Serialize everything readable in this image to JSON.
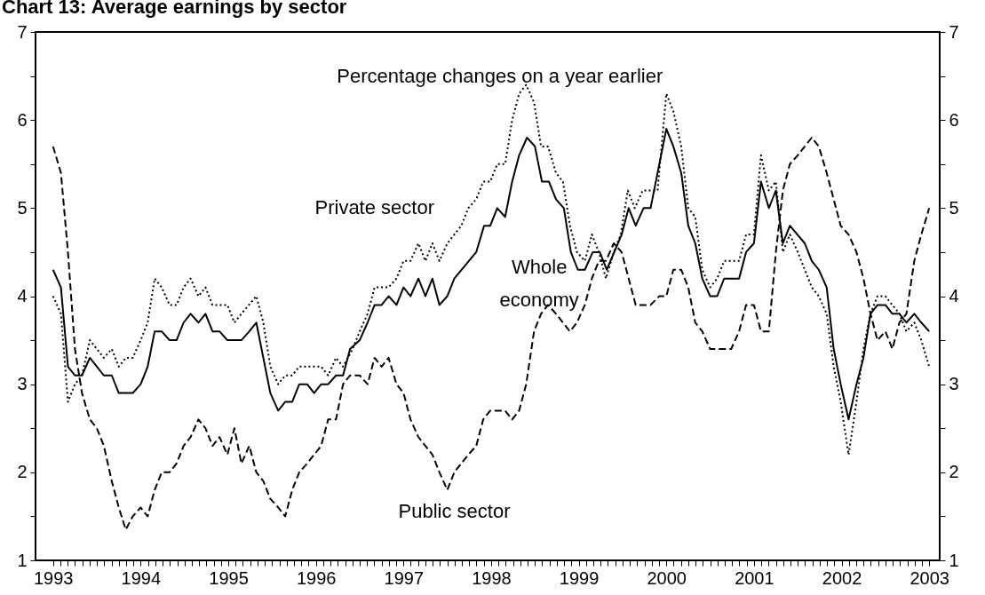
{
  "chart_data": {
    "type": "line",
    "title": "Chart 13: Average earnings by sector",
    "subtitle": "Percentage changes on a year earlier",
    "xlim": [
      1992.8,
      2003.12
    ],
    "ylim": [
      1,
      7
    ],
    "y2lim": [
      1,
      7
    ],
    "xticks": [
      1993,
      {
        "value": 1993.083,
        "label": null
      },
      {
        "value": 1993.167,
        "label": null
      },
      {
        "value": 1993.25,
        "label": null
      },
      {
        "value": 1993.333,
        "label": null
      },
      {
        "value": 1993.417,
        "label": null
      },
      {
        "value": 1993.5,
        "label": null
      },
      {
        "value": 1993.583,
        "label": null
      },
      {
        "value": 1993.667,
        "label": null
      },
      {
        "value": 1993.75,
        "label": null
      },
      {
        "value": 1993.833,
        "label": null
      },
      {
        "value": 1993.917,
        "label": null
      },
      1994,
      {
        "value": 1994.083,
        "label": null
      },
      {
        "value": 1994.167,
        "label": null
      },
      {
        "value": 1994.25,
        "label": null
      },
      {
        "value": 1994.333,
        "label": null
      },
      {
        "value": 1994.417,
        "label": null
      },
      {
        "value": 1994.5,
        "label": null
      },
      {
        "value": 1994.583,
        "label": null
      },
      {
        "value": 1994.667,
        "label": null
      },
      {
        "value": 1994.75,
        "label": null
      },
      {
        "value": 1994.833,
        "label": null
      },
      {
        "value": 1994.917,
        "label": null
      },
      1995,
      {
        "value": 1995.083,
        "label": null
      },
      {
        "value": 1995.167,
        "label": null
      },
      {
        "value": 1995.25,
        "label": null
      },
      {
        "value": 1995.333,
        "label": null
      },
      {
        "value": 1995.417,
        "label": null
      },
      {
        "value": 1995.5,
        "label": null
      },
      {
        "value": 1995.583,
        "label": null
      },
      {
        "value": 1995.667,
        "label": null
      },
      {
        "value": 1995.75,
        "label": null
      },
      {
        "value": 1995.833,
        "label": null
      },
      {
        "value": 1995.917,
        "label": null
      },
      1996,
      {
        "value": 1996.083,
        "label": null
      },
      {
        "value": 1996.167,
        "label": null
      },
      {
        "value": 1996.25,
        "label": null
      },
      {
        "value": 1996.333,
        "label": null
      },
      {
        "value": 1996.417,
        "label": null
      },
      {
        "value": 1996.5,
        "label": null
      },
      {
        "value": 1996.583,
        "label": null
      },
      {
        "value": 1996.667,
        "label": null
      },
      {
        "value": 1996.75,
        "label": null
      },
      {
        "value": 1996.833,
        "label": null
      },
      {
        "value": 1996.917,
        "label": null
      },
      1997,
      {
        "value": 1997.083,
        "label": null
      },
      {
        "value": 1997.167,
        "label": null
      },
      {
        "value": 1997.25,
        "label": null
      },
      {
        "value": 1997.333,
        "label": null
      },
      {
        "value": 1997.417,
        "label": null
      },
      {
        "value": 1997.5,
        "label": null
      },
      {
        "value": 1997.583,
        "label": null
      },
      {
        "value": 1997.667,
        "label": null
      },
      {
        "value": 1997.75,
        "label": null
      },
      {
        "value": 1997.833,
        "label": null
      },
      {
        "value": 1997.917,
        "label": null
      },
      1998,
      {
        "value": 1998.083,
        "label": null
      },
      {
        "value": 1998.167,
        "label": null
      },
      {
        "value": 1998.25,
        "label": null
      },
      {
        "value": 1998.333,
        "label": null
      },
      {
        "value": 1998.417,
        "label": null
      },
      {
        "value": 1998.5,
        "label": null
      },
      {
        "value": 1998.583,
        "label": null
      },
      {
        "value": 1998.667,
        "label": null
      },
      {
        "value": 1998.75,
        "label": null
      },
      {
        "value": 1998.833,
        "label": null
      },
      {
        "value": 1998.917,
        "label": null
      },
      1999,
      {
        "value": 1999.083,
        "label": null
      },
      {
        "value": 1999.167,
        "label": null
      },
      {
        "value": 1999.25,
        "label": null
      },
      {
        "value": 1999.333,
        "label": null
      },
      {
        "value": 1999.417,
        "label": null
      },
      {
        "value": 1999.5,
        "label": null
      },
      {
        "value": 1999.583,
        "label": null
      },
      {
        "value": 1999.667,
        "label": null
      },
      {
        "value": 1999.75,
        "label": null
      },
      {
        "value": 1999.833,
        "label": null
      },
      {
        "value": 1999.917,
        "label": null
      },
      2000,
      {
        "value": 2000.083,
        "label": null
      },
      {
        "value": 2000.167,
        "label": null
      },
      {
        "value": 2000.25,
        "label": null
      },
      {
        "value": 2000.333,
        "label": null
      },
      {
        "value": 2000.417,
        "label": null
      },
      {
        "value": 2000.5,
        "label": null
      },
      {
        "value": 2000.583,
        "label": null
      },
      {
        "value": 2000.667,
        "label": null
      },
      {
        "value": 2000.75,
        "label": null
      },
      {
        "value": 2000.833,
        "label": null
      },
      {
        "value": 2000.917,
        "label": null
      },
      2001,
      {
        "value": 2001.083,
        "label": null
      },
      {
        "value": 2001.167,
        "label": null
      },
      {
        "value": 2001.25,
        "label": null
      },
      {
        "value": 2001.333,
        "label": null
      },
      {
        "value": 2001.417,
        "label": null
      },
      {
        "value": 2001.5,
        "label": null
      },
      {
        "value": 2001.583,
        "label": null
      },
      {
        "value": 2001.667,
        "label": null
      },
      {
        "value": 2001.75,
        "label": null
      },
      {
        "value": 2001.833,
        "label": null
      },
      {
        "value": 2001.917,
        "label": null
      },
      2002,
      {
        "value": 2002.083,
        "label": null
      },
      {
        "value": 2002.167,
        "label": null
      },
      {
        "value": 2002.25,
        "label": null
      },
      {
        "value": 2002.333,
        "label": null
      },
      {
        "value": 2002.417,
        "label": null
      },
      {
        "value": 2002.5,
        "label": null
      },
      {
        "value": 2002.583,
        "label": null
      },
      {
        "value": 2002.667,
        "label": null
      },
      {
        "value": 2002.75,
        "label": null
      },
      {
        "value": 2002.833,
        "label": null
      },
      {
        "value": 2002.917,
        "label": null
      },
      2003
    ],
    "yticks": [
      1,
      {
        "value": 1.5,
        "label": null
      },
      2,
      {
        "value": 2.5,
        "label": null
      },
      3,
      {
        "value": 3.5,
        "label": null
      },
      4,
      {
        "value": 4.5,
        "label": null
      },
      5,
      {
        "value": 5.5,
        "label": null
      },
      6,
      {
        "value": 6.5,
        "label": null
      },
      7
    ],
    "y2ticks": [
      1,
      {
        "value": 1.5,
        "label": null
      },
      2,
      {
        "value": 2.5,
        "label": null
      },
      3,
      {
        "value": 3.5,
        "label": null
      },
      4,
      {
        "value": 4.5,
        "label": null
      },
      5,
      {
        "value": 5.5,
        "label": null
      },
      6,
      {
        "value": 6.5,
        "label": null
      },
      7
    ],
    "series": [
      {
        "name": "Whole economy",
        "color": "#000000",
        "line_style": "solid",
        "x": [
          1993.0,
          1993.09,
          1993.17,
          1993.25,
          1993.33,
          1993.42,
          1993.5,
          1993.58,
          1993.67,
          1993.75,
          1993.91,
          1994.0,
          1994.08,
          1994.16,
          1994.24,
          1994.33,
          1994.41,
          1994.49,
          1994.57,
          1994.66,
          1994.74,
          1994.82,
          1994.9,
          1994.99,
          1995.15,
          1995.24,
          1995.32,
          1995.48,
          1995.57,
          1995.65,
          1995.73,
          1995.81,
          1995.9,
          1995.98,
          1996.06,
          1996.14,
          1996.23,
          1996.31,
          1996.39,
          1996.5,
          1996.59,
          1996.67,
          1996.75,
          1996.83,
          1996.92,
          1997.0,
          1997.08,
          1997.17,
          1997.25,
          1997.33,
          1997.41,
          1997.5,
          1997.58,
          1997.83,
          1997.92,
          1997.99,
          1998.07,
          1998.16,
          1998.24,
          1998.32,
          1998.41,
          1998.5,
          1998.58,
          1998.66,
          1998.74,
          1998.83,
          1998.91,
          1998.99,
          1999.07,
          1999.16,
          1999.24,
          1999.32,
          1999.49,
          1999.57,
          1999.65,
          1999.74,
          1999.82,
          2000.0,
          2000.08,
          2000.17,
          2000.25,
          2000.33,
          2000.41,
          2000.5,
          2000.58,
          2000.66,
          2000.83,
          2000.91,
          2001.0,
          2001.08,
          2001.17,
          2001.25,
          2001.33,
          2001.41,
          2001.58,
          2001.66,
          2001.74,
          2001.83,
          2001.91,
          2001.99,
          2002.08,
          2002.17,
          2002.25,
          2002.33,
          2002.41,
          2002.5,
          2002.58,
          2002.66,
          2002.74,
          2002.83,
          2002.91,
          2003.0
        ],
        "values": [
          4.3,
          4.1,
          3.2,
          3.1,
          3.1,
          3.3,
          3.2,
          3.1,
          3.1,
          2.9,
          2.9,
          3.0,
          3.2,
          3.6,
          3.6,
          3.5,
          3.5,
          3.7,
          3.8,
          3.7,
          3.8,
          3.6,
          3.6,
          3.5,
          3.5,
          3.6,
          3.7,
          2.9,
          2.7,
          2.8,
          2.8,
          3.0,
          3.0,
          2.9,
          3.0,
          3.0,
          3.1,
          3.1,
          3.4,
          3.5,
          3.7,
          3.9,
          3.9,
          4.0,
          3.9,
          4.1,
          4.0,
          4.2,
          4.0,
          4.2,
          3.9,
          4.0,
          4.2,
          4.5,
          4.8,
          4.8,
          5.0,
          4.9,
          5.3,
          5.6,
          5.8,
          5.7,
          5.3,
          5.3,
          5.1,
          5.0,
          4.5,
          4.3,
          4.3,
          4.5,
          4.5,
          4.3,
          4.7,
          5.0,
          4.8,
          5.0,
          5.0,
          5.9,
          5.7,
          5.4,
          4.8,
          4.6,
          4.2,
          4.0,
          4.0,
          4.2,
          4.2,
          4.5,
          4.6,
          5.3,
          5.0,
          5.2,
          4.6,
          4.8,
          4.6,
          4.4,
          4.3,
          4.1,
          3.4,
          3.0,
          2.6,
          3.0,
          3.3,
          3.8,
          3.9,
          3.9,
          3.8,
          3.8,
          3.7,
          3.8,
          3.7,
          3.6
        ]
      },
      {
        "name": "Private sector",
        "color": "#000000",
        "line_style": "dotted",
        "x": [
          1993.0,
          1993.09,
          1993.17,
          1993.25,
          1993.33,
          1993.42,
          1993.5,
          1993.58,
          1993.67,
          1993.75,
          1993.83,
          1993.91,
          1994.0,
          1994.08,
          1994.16,
          1994.24,
          1994.33,
          1994.41,
          1994.49,
          1994.57,
          1994.66,
          1994.74,
          1994.82,
          1994.99,
          1995.07,
          1995.15,
          1995.32,
          1995.4,
          1995.48,
          1995.57,
          1995.65,
          1995.73,
          1995.81,
          1996.06,
          1996.14,
          1996.23,
          1996.31,
          1996.42,
          1996.5,
          1996.59,
          1996.67,
          1996.83,
          1996.92,
          1997.0,
          1997.08,
          1997.17,
          1997.25,
          1997.33,
          1997.41,
          1997.5,
          1997.66,
          1997.74,
          1997.83,
          1997.91,
          1997.99,
          1998.07,
          1998.16,
          1998.24,
          1998.32,
          1998.4,
          1998.49,
          1998.57,
          1998.65,
          1998.74,
          1998.82,
          1998.9,
          1998.98,
          1999.07,
          1999.15,
          1999.23,
          1999.31,
          1999.4,
          1999.48,
          1999.56,
          1999.64,
          1999.73,
          1999.81,
          1999.9,
          2000.0,
          2000.08,
          2000.17,
          2000.25,
          2000.33,
          2000.41,
          2000.5,
          2000.58,
          2000.66,
          2000.83,
          2000.91,
          2001.0,
          2001.08,
          2001.17,
          2001.25,
          2001.33,
          2001.41,
          2001.5,
          2001.58,
          2001.66,
          2001.74,
          2001.83,
          2001.91,
          2001.99,
          2002.08,
          2002.17,
          2002.25,
          2002.33,
          2002.41,
          2002.5,
          2002.58,
          2002.66,
          2002.74,
          2002.83,
          2002.91,
          2003.0
        ],
        "values": [
          4.0,
          3.8,
          2.8,
          3.0,
          3.1,
          3.5,
          3.4,
          3.3,
          3.4,
          3.2,
          3.3,
          3.3,
          3.5,
          3.7,
          4.2,
          4.1,
          3.9,
          3.9,
          4.1,
          4.2,
          4.0,
          4.1,
          3.9,
          3.9,
          3.7,
          3.8,
          4.0,
          3.7,
          3.2,
          3.0,
          3.1,
          3.1,
          3.2,
          3.2,
          3.1,
          3.3,
          3.2,
          3.4,
          3.6,
          3.8,
          4.1,
          4.1,
          4.2,
          4.4,
          4.4,
          4.6,
          4.4,
          4.6,
          4.4,
          4.6,
          4.8,
          5.0,
          5.1,
          5.3,
          5.3,
          5.5,
          5.5,
          6.0,
          6.3,
          6.4,
          6.2,
          5.7,
          5.7,
          5.4,
          5.3,
          4.8,
          4.5,
          4.4,
          4.7,
          4.5,
          4.2,
          4.5,
          4.7,
          5.2,
          5.0,
          5.2,
          5.2,
          5.2,
          6.3,
          6.1,
          5.7,
          5.0,
          4.9,
          4.3,
          4.1,
          4.2,
          4.4,
          4.4,
          4.7,
          4.7,
          5.6,
          5.2,
          5.3,
          4.5,
          4.7,
          4.5,
          4.3,
          4.1,
          4.0,
          3.8,
          3.2,
          2.8,
          2.2,
          2.8,
          3.4,
          3.8,
          4.0,
          4.0,
          3.9,
          3.8,
          3.6,
          3.7,
          3.5,
          3.2
        ]
      },
      {
        "name": "Public sector",
        "color": "#000000",
        "line_style": "dashed",
        "x": [
          1993.0,
          1993.09,
          1993.17,
          1993.25,
          1993.33,
          1993.42,
          1993.5,
          1993.58,
          1993.67,
          1993.75,
          1993.83,
          1993.91,
          1994.0,
          1994.08,
          1994.16,
          1994.24,
          1994.33,
          1994.41,
          1994.49,
          1994.57,
          1994.66,
          1994.74,
          1994.82,
          1994.9,
          1994.99,
          1995.07,
          1995.15,
          1995.24,
          1995.32,
          1995.4,
          1995.48,
          1995.57,
          1995.65,
          1995.73,
          1995.81,
          1995.9,
          1995.98,
          1996.06,
          1996.14,
          1996.23,
          1996.31,
          1996.39,
          1996.5,
          1996.59,
          1996.67,
          1996.75,
          1996.83,
          1996.92,
          1997.0,
          1997.08,
          1997.17,
          1997.25,
          1997.33,
          1997.41,
          1997.5,
          1997.58,
          1997.66,
          1997.74,
          1997.83,
          1997.91,
          1997.99,
          1998.16,
          1998.24,
          1998.32,
          1998.4,
          1998.49,
          1998.57,
          1998.65,
          1998.74,
          1998.82,
          1998.9,
          1998.98,
          1999.07,
          1999.15,
          1999.23,
          1999.31,
          1999.4,
          1999.49,
          1999.57,
          1999.65,
          1999.82,
          1999.92,
          2000.0,
          2000.08,
          2000.17,
          2000.25,
          2000.33,
          2000.41,
          2000.5,
          2000.58,
          2000.74,
          2000.83,
          2000.91,
          2001.0,
          2001.08,
          2001.17,
          2001.25,
          2001.33,
          2001.41,
          2001.5,
          2001.58,
          2001.66,
          2001.74,
          2001.83,
          2001.91,
          2001.99,
          2002.08,
          2002.17,
          2002.25,
          2002.33,
          2002.41,
          2002.5,
          2002.58,
          2002.66,
          2002.74,
          2002.83,
          2002.91,
          2003.0
        ],
        "values": [
          5.7,
          5.4,
          4.5,
          3.4,
          2.9,
          2.6,
          2.5,
          2.3,
          1.9,
          1.6,
          1.35,
          1.5,
          1.6,
          1.5,
          1.8,
          2.0,
          2.0,
          2.1,
          2.3,
          2.4,
          2.6,
          2.5,
          2.3,
          2.4,
          2.2,
          2.5,
          2.1,
          2.3,
          2.0,
          1.9,
          1.7,
          1.6,
          1.5,
          1.8,
          2.0,
          2.1,
          2.2,
          2.3,
          2.6,
          2.6,
          3.0,
          3.1,
          3.1,
          3.0,
          3.3,
          3.2,
          3.3,
          3.0,
          2.9,
          2.6,
          2.4,
          2.3,
          2.2,
          2.0,
          1.8,
          2.0,
          2.1,
          2.2,
          2.3,
          2.6,
          2.7,
          2.7,
          2.6,
          2.7,
          3.0,
          3.6,
          3.8,
          3.9,
          3.8,
          3.7,
          3.6,
          3.7,
          3.9,
          4.2,
          4.4,
          4.4,
          4.6,
          4.5,
          4.2,
          3.9,
          3.9,
          4.0,
          4.0,
          4.3,
          4.3,
          4.1,
          3.7,
          3.6,
          3.4,
          3.4,
          3.4,
          3.6,
          3.9,
          3.9,
          3.6,
          3.6,
          4.5,
          5.2,
          5.5,
          5.6,
          5.7,
          5.8,
          5.7,
          5.4,
          5.1,
          4.8,
          4.7,
          4.5,
          4.2,
          3.8,
          3.5,
          3.6,
          3.4,
          3.7,
          3.8,
          4.4,
          4.7,
          5.0
        ]
      }
    ]
  }
}
